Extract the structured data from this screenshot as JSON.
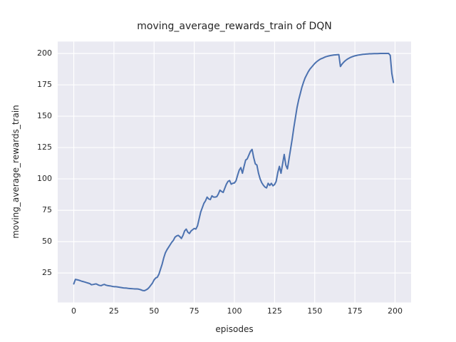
{
  "figure": {
    "title": "moving_average_rewards_train of DQN",
    "xlabel": "episodes",
    "ylabel": "moving_average_rewards_train"
  },
  "chart_data": {
    "type": "line",
    "title": "moving_average_rewards_train of DQN",
    "xlabel": "episodes",
    "ylabel": "moving_average_rewards_train",
    "legend": false,
    "grid": true,
    "xlim": [
      -10,
      210
    ],
    "ylim": [
      1.5,
      209.5
    ],
    "xticks": [
      0,
      25,
      50,
      75,
      100,
      125,
      150,
      175,
      200
    ],
    "yticks": [
      25,
      50,
      75,
      100,
      125,
      150,
      175,
      200
    ],
    "x_start": 0,
    "x_step": 1,
    "series": [
      {
        "name": "moving_average_rewards_train",
        "color": "#4C72B0",
        "values": [
          16.3,
          19.9,
          19.6,
          19.3,
          18.9,
          18.4,
          18.1,
          17.7,
          17.3,
          16.9,
          16.5,
          15.6,
          15.8,
          16.1,
          16.3,
          15.6,
          15.1,
          14.9,
          15.5,
          15.9,
          15.3,
          15.0,
          14.8,
          14.6,
          14.3,
          14.1,
          14.1,
          13.9,
          13.7,
          13.5,
          13.3,
          13.1,
          13.0,
          12.9,
          12.7,
          12.6,
          12.5,
          12.4,
          12.3,
          12.3,
          12.2,
          11.9,
          11.5,
          11.0,
          10.9,
          11.5,
          12.3,
          13.6,
          15.3,
          17.0,
          19.5,
          21.0,
          21.6,
          24.0,
          28.0,
          32.0,
          37.0,
          41.0,
          43.5,
          45.5,
          47.5,
          49.5,
          51.0,
          53.5,
          54.5,
          55.0,
          54.0,
          52.5,
          55.0,
          58.5,
          60.0,
          57.5,
          56.5,
          58.5,
          59.5,
          60.5,
          60.0,
          62.5,
          68.0,
          73.5,
          77.0,
          80.5,
          82.5,
          85.5,
          84.0,
          83.5,
          86.5,
          85.5,
          85.5,
          85.8,
          88.0,
          91.0,
          90.0,
          89.2,
          92.5,
          95.8,
          98.0,
          98.7,
          95.8,
          96.5,
          96.8,
          98.5,
          103.0,
          107.0,
          109.0,
          104.5,
          110.0,
          115.0,
          116.0,
          119.0,
          122.0,
          123.5,
          117.0,
          112.0,
          111.0,
          104.5,
          100.0,
          97.0,
          95.0,
          93.5,
          92.8,
          96.5,
          94.8,
          96.5,
          94.5,
          95.5,
          98.0,
          105.0,
          110.0,
          104.5,
          112.0,
          119.5,
          111.0,
          108.0,
          116.0,
          124.0,
          132.0,
          141.0,
          149.0,
          157.0,
          163.0,
          168.0,
          173.0,
          177.0,
          180.5,
          183.0,
          185.5,
          187.5,
          189.0,
          190.5,
          192.0,
          193.2,
          194.2,
          195.1,
          195.8,
          196.3,
          196.9,
          197.4,
          197.8,
          198.1,
          198.4,
          198.6,
          198.8,
          198.9,
          199.0,
          199.1,
          189.6,
          191.5,
          193.0,
          194.2,
          195.2,
          196.0,
          196.7,
          197.2,
          197.7,
          198.1,
          198.4,
          198.7,
          198.9,
          199.1,
          199.3,
          199.4,
          199.5,
          199.6,
          199.7,
          199.75,
          199.8,
          199.85,
          199.9,
          199.9,
          199.95,
          200.0,
          200.0,
          200.0,
          200.0,
          200.0,
          200.0,
          198.5,
          184.0,
          176.9
        ]
      }
    ],
    "style": {
      "figure_bg": "#FFFFFF",
      "axes_bg": "#EAEAF2",
      "grid_color": "#FFFFFF",
      "text_color": "#262626",
      "line_color": "#4C72B0",
      "line_width": 2
    }
  }
}
